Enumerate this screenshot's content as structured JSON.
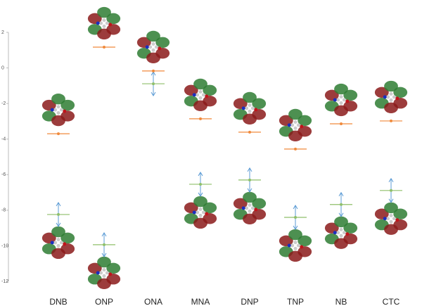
{
  "chart_data": {
    "type": "energy-level",
    "categories": [
      "DNB",
      "ONP",
      "ONA",
      "MNA",
      "DNP",
      "TNP",
      "NB",
      "CTC"
    ],
    "series": [
      {
        "color": "#f08a3c",
        "values": [
          -3.7,
          1.17,
          -0.17,
          -2.86,
          -3.61,
          -4.56,
          -3.14,
          -2.98
        ]
      },
      {
        "color": "#8fbf6a",
        "values": [
          -8.24,
          -9.94,
          -0.89,
          -6.54,
          -6.3,
          -8.4,
          -7.68,
          -6.89
        ]
      }
    ],
    "ylim": [
      -12,
      2
    ],
    "yticks": [
      2,
      0,
      -2,
      -4,
      -6,
      -8,
      -10,
      -12
    ]
  }
}
